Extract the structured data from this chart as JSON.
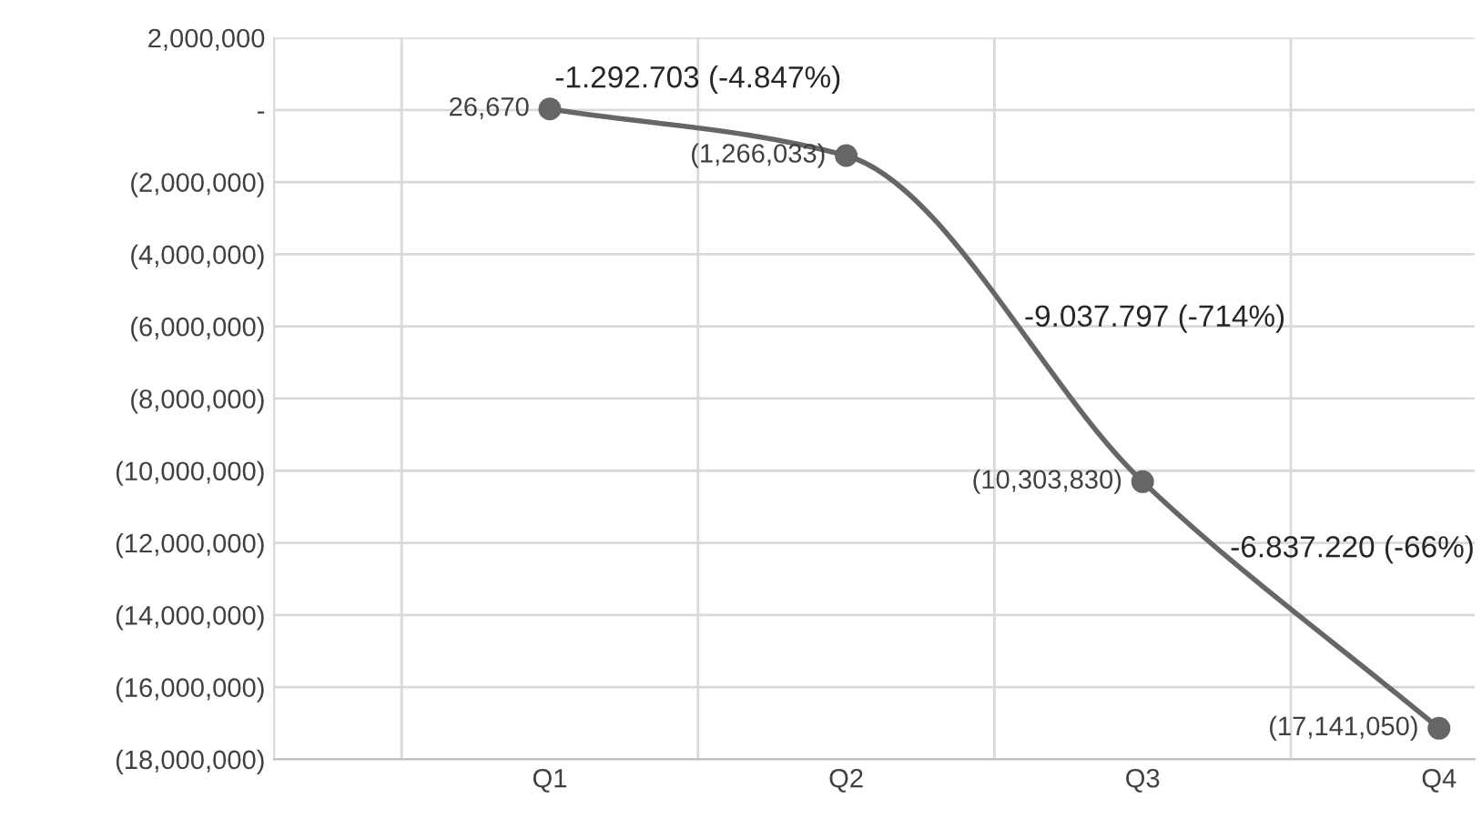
{
  "chart_data": {
    "type": "line",
    "categories": [
      "Q1",
      "Q2",
      "Q3",
      "Q4"
    ],
    "series": [
      {
        "color": "#666666",
        "values": [
          26670,
          -1266033,
          -10303830,
          -17141050
        ],
        "value_labels": [
          "26,670",
          "(1,266,033)",
          "(10,303,830)",
          "(17,141,050)"
        ]
      }
    ],
    "ylim": [
      -18000000,
      2000000
    ],
    "yticks": [
      {
        "value": 2000000,
        "label": "2,000,000"
      },
      {
        "value": 0,
        "label": "-"
      },
      {
        "value": -2000000,
        "label": "(2,000,000)"
      },
      {
        "value": -4000000,
        "label": "(4,000,000)"
      },
      {
        "value": -6000000,
        "label": "(6,000,000)"
      },
      {
        "value": -8000000,
        "label": "(8,000,000)"
      },
      {
        "value": -10000000,
        "label": "(10,000,000)"
      },
      {
        "value": -12000000,
        "label": "(12,000,000)"
      },
      {
        "value": -14000000,
        "label": "(14,000,000)"
      },
      {
        "value": -16000000,
        "label": "(16,000,000)"
      },
      {
        "value": -18000000,
        "label": "(18,000,000)"
      }
    ],
    "annotations": [
      "-1.292.703 (-4.847%)",
      "-9.037.797 (-714%)",
      "-6.837.220 (-66%)"
    ],
    "grid": true,
    "marker": "circle",
    "line_style": "solid",
    "legend": false
  }
}
